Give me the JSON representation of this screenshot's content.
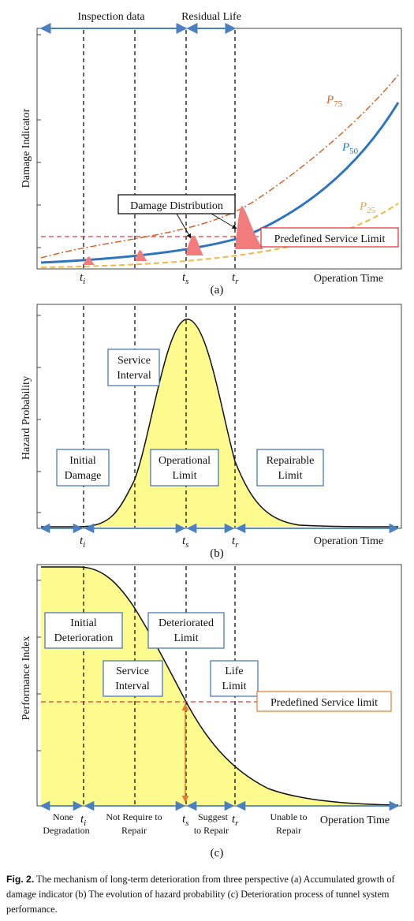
{
  "panel_a": {
    "top_labels": {
      "inspection": "Inspection data",
      "residual": "Residual Life"
    },
    "y_label": "Damage Indicator",
    "x_label": "Operation Time",
    "curves": {
      "p75_base": "P",
      "p75_sub": "75",
      "p50_base": "P",
      "p50_sub": "50",
      "p25_base": "P",
      "p25_sub": "25"
    },
    "ticks": {
      "ti_base": "t",
      "ti_sub": "i",
      "ts_base": "t",
      "ts_sub": "s",
      "tr_base": "t",
      "tr_sub": "r"
    },
    "damage_distribution": "Damage Distribution",
    "service_limit": "Predefined Service Limit",
    "caption_letter": "(a)"
  },
  "panel_b": {
    "y_label": "Hazard Probability",
    "x_label": "Operation Time",
    "boxes": {
      "service_interval_1": "Service",
      "service_interval_2": "Interval",
      "initial_damage_1": "Initial",
      "initial_damage_2": "Damage",
      "operational_limit_1": "Operational",
      "operational_limit_2": "Limit",
      "repairable_limit_1": "Repairable",
      "repairable_limit_2": "Limit"
    },
    "ticks": {
      "ti_base": "t",
      "ti_sub": "i",
      "ts_base": "t",
      "ts_sub": "s",
      "tr_base": "t",
      "tr_sub": "r"
    },
    "caption_letter": "(b)"
  },
  "panel_c": {
    "y_label": "Performance Index",
    "x_label": "Operation Time",
    "boxes": {
      "initial_deterioration_1": "Initial",
      "initial_deterioration_2": "Deterioration",
      "deteriorated_limit_1": "Deteriorated",
      "deteriorated_limit_2": "Limit",
      "service_interval_1": "Service",
      "service_interval_2": "Interval",
      "life_limit_1": "Life",
      "life_limit_2": "Limit"
    },
    "service_limit": "Predefined Service limit",
    "bottom": {
      "none_1": "None",
      "none_2": "Degradation",
      "not_require_1": "Not Require to",
      "not_require_2": "Repair",
      "suggest_1": "Suggest",
      "suggest_2": "to Repair",
      "unable_1": "Unable to",
      "unable_2": "Repair"
    },
    "ticks": {
      "ti_base": "t",
      "ti_sub": "i",
      "ts_base": "t",
      "ts_sub": "s",
      "tr_base": "t",
      "tr_sub": "r"
    },
    "caption_letter": "(c)"
  },
  "caption": {
    "label": "Fig. 2.",
    "text": "The mechanism of long-term deterioration from three perspective (a) Accumulated growth of damage indicator (b) The evolution of hazard probability (c) Deterioration process of tunnel system performance."
  },
  "colors": {
    "axis_blue": "#4a7fc1",
    "p50_blue": "#2e75c0",
    "p75_orange": "#d2652a",
    "p25_yellow": "#f1b843",
    "service_red": "#e23b3b",
    "dist_red": "#f27c7c",
    "fill_yellow": "#fdfb8e",
    "box_blue": "#3f6fb8",
    "arrow_orange": "#e57c2f"
  }
}
